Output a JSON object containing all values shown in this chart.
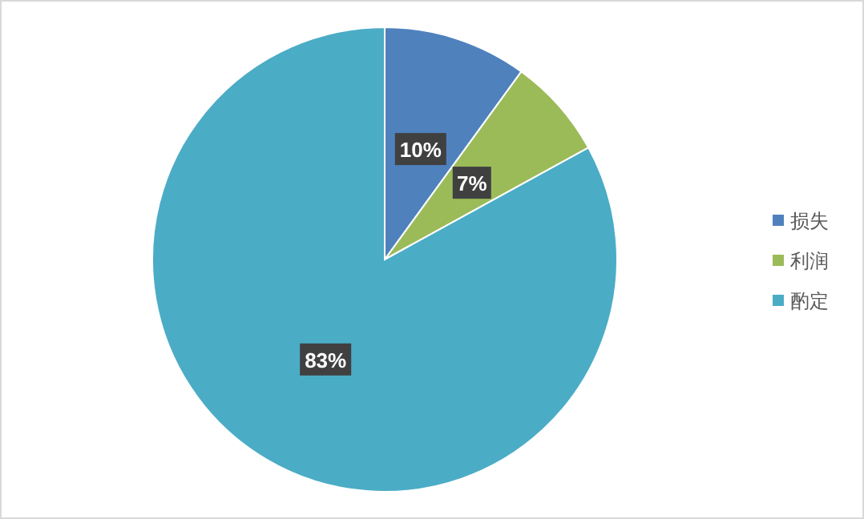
{
  "chart_data": {
    "type": "pie",
    "categories": [
      "损失",
      "利润",
      "酌定"
    ],
    "values": [
      10,
      7,
      83
    ],
    "colors": [
      "#4f81bd",
      "#9bbb59",
      "#4bacc6"
    ],
    "value_labels": [
      "10%",
      "7%",
      "83%"
    ],
    "legend": "right"
  }
}
